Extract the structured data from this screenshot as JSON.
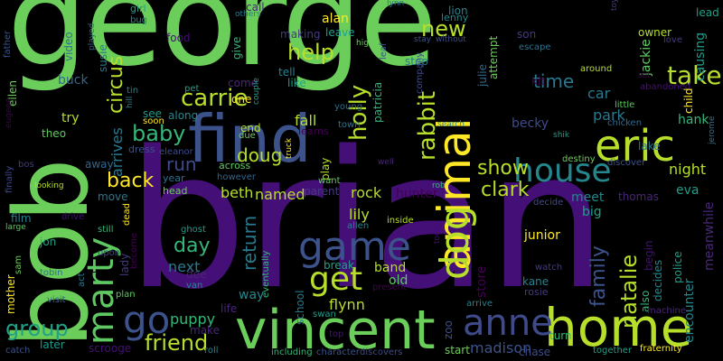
{
  "colors": {
    "background": "#000000",
    "palette": [
      "#440154",
      "#482777",
      "#3f4a8a",
      "#31678e",
      "#26838f",
      "#1f9d8a",
      "#6cce5a",
      "#b6de2b",
      "#fee825",
      "#35b779",
      "#2a788e",
      "#443a83",
      "#24878e",
      "#3b528b",
      "#5ec962",
      "#1fa187",
      "#440f76",
      "#2c718e"
    ]
  },
  "words": [
    "george",
    "brian",
    "bob",
    "find",
    "vincent",
    "home",
    "anne",
    "animal",
    "eric",
    "house",
    "dog",
    "marty",
    "game",
    "get",
    "go",
    "friend",
    "group",
    "rabbit",
    "carrie",
    "help",
    "new",
    "holly",
    "take",
    "show",
    "clark",
    "back",
    "baby",
    "run",
    "doug",
    "beth",
    "named",
    "rock",
    "lily",
    "natalie",
    "family",
    "day",
    "next",
    "return",
    "puppy",
    "circus",
    "arrives",
    "time",
    "car",
    "park",
    "becky",
    "hank",
    "night",
    "eva",
    "meet",
    "thomas",
    "junior",
    "big",
    "kane",
    "rosie",
    "store",
    "band",
    "old",
    "flynn",
    "school",
    "madison",
    "start",
    "zoo",
    "chase",
    "turn",
    "scrooge",
    "later",
    "way",
    "life",
    "mother",
    "jon",
    "film",
    "lady",
    "become",
    "try",
    "theo",
    "buck",
    "susie",
    "video",
    "ellen",
    "father",
    "finally",
    "eventually",
    "fall",
    "see",
    "along",
    "come",
    "one",
    "like",
    "tell",
    "making",
    "learns",
    "end",
    "across",
    "away",
    "move",
    "year",
    "head",
    "dress",
    "eleanor",
    "give",
    "food",
    "girl",
    "bug",
    "call",
    "alan",
    "leave",
    "lion",
    "son",
    "kit",
    "owner",
    "jackie",
    "julie",
    "stop",
    "escape",
    "attempt",
    "leaf",
    "company",
    "patricia",
    "abandoned",
    "causing",
    "encounter",
    "meanwhile",
    "child",
    "lead",
    "lenny",
    "love",
    "set",
    "around",
    "little",
    "chicken",
    "lake",
    "jerome",
    "destiny",
    "discover",
    "decide",
    "also",
    "begin",
    "police",
    "decides",
    "machine",
    "fraternity",
    "together",
    "arrive",
    "watch",
    "present",
    "inside",
    "plan",
    "visit",
    "act",
    "tobin",
    "sam",
    "catch",
    "upon",
    "still",
    "drive",
    "ghost",
    "van",
    "dee",
    "dead",
    "break",
    "allen",
    "parent",
    "hunter",
    "play",
    "want",
    "however",
    "town",
    "young",
    "due",
    "character",
    "discovers",
    "including",
    "top",
    "swan",
    "roll",
    "make",
    "soon",
    "pet",
    "tin",
    "bos",
    "eugene",
    "looking",
    "large",
    "played",
    "others",
    "lynn",
    "high",
    "stay",
    "without",
    "rob",
    "todd",
    "shik",
    "search",
    "well",
    "truck",
    "couple",
    "hill",
    "toy"
  ]
}
